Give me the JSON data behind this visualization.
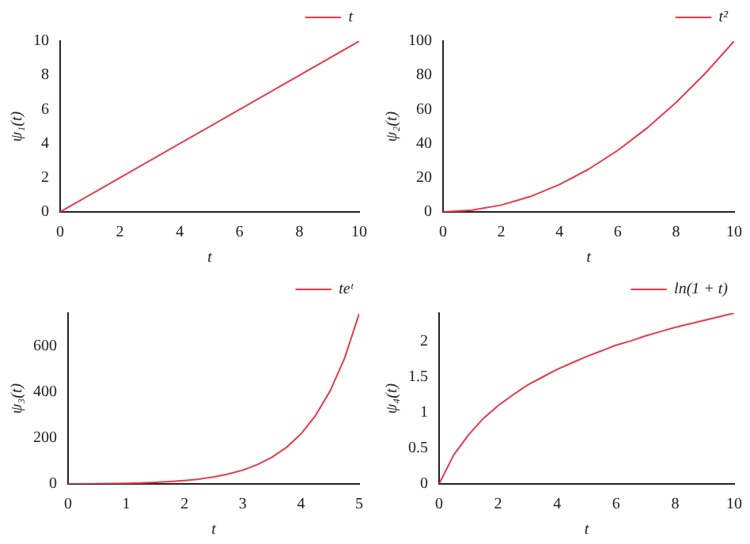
{
  "chart_data": [
    {
      "type": "line",
      "xlabel": "t",
      "ylabel": "ψ₁(t)",
      "x": [
        0,
        10
      ],
      "series": [
        {
          "name": "t",
          "color": "#e8394a",
          "values": [
            0,
            10
          ]
        }
      ],
      "xlim": [
        0,
        10
      ],
      "ylim": [
        0,
        10
      ],
      "xticks": [
        0,
        2,
        4,
        6,
        8,
        10
      ],
      "yticks": [
        0,
        2,
        4,
        6,
        8,
        10
      ],
      "grid": false,
      "legend": "top right",
      "marker": "none",
      "line_style": "solid"
    },
    {
      "type": "line",
      "xlabel": "t",
      "ylabel": "ψ₂(t)",
      "x": [
        0,
        1,
        2,
        3,
        4,
        5,
        6,
        7,
        8,
        9,
        10
      ],
      "series": [
        {
          "name": "t²",
          "color": "#e8394a",
          "values": [
            0,
            1,
            4,
            9,
            16,
            25,
            36,
            49,
            64,
            81,
            100
          ]
        }
      ],
      "xlim": [
        0,
        10
      ],
      "ylim": [
        0,
        100
      ],
      "xticks": [
        0,
        2,
        4,
        6,
        8,
        10
      ],
      "yticks": [
        0,
        20,
        40,
        60,
        80,
        100
      ],
      "grid": false,
      "legend": "top right",
      "marker": "none",
      "line_style": "solid"
    },
    {
      "type": "line",
      "xlabel": "t",
      "ylabel": "ψ₃(t)",
      "x": [
        0,
        0.25,
        0.5,
        0.75,
        1,
        1.25,
        1.5,
        1.75,
        2,
        2.25,
        2.5,
        2.75,
        3,
        3.25,
        3.5,
        3.75,
        4,
        4.25,
        4.5,
        4.75,
        5
      ],
      "series": [
        {
          "name": "teᵗ",
          "color": "#e8394a",
          "values": [
            0,
            0,
            1,
            2,
            3,
            4,
            7,
            10,
            15,
            21,
            30,
            43,
            60,
            84,
            116,
            159,
            218,
            298,
            405,
            549,
            742
          ]
        }
      ],
      "xlim": [
        0,
        5
      ],
      "ylim": [
        0,
        745
      ],
      "xticks": [
        0,
        1,
        2,
        3,
        4,
        5
      ],
      "yticks": [
        0,
        200,
        400,
        600
      ],
      "grid": false,
      "legend": "top right",
      "marker": "none",
      "line_style": "solid"
    },
    {
      "type": "line",
      "xlabel": "t",
      "ylabel": "ψ₄(t)",
      "x": [
        0,
        0.5,
        1,
        1.5,
        2,
        2.5,
        3,
        3.5,
        4,
        4.5,
        5,
        5.5,
        6,
        6.5,
        7,
        7.5,
        8,
        8.5,
        9,
        9.5,
        10
      ],
      "series": [
        {
          "name": "ln(1 + t)",
          "color": "#e8394a",
          "values": [
            0,
            0.41,
            0.69,
            0.92,
            1.1,
            1.25,
            1.39,
            1.5,
            1.61,
            1.7,
            1.79,
            1.87,
            1.95,
            2.01,
            2.08,
            2.14,
            2.2,
            2.25,
            2.3,
            2.35,
            2.4
          ]
        }
      ],
      "xlim": [
        0,
        10
      ],
      "ylim": [
        0,
        2.4
      ],
      "xticks": [
        0,
        2,
        4,
        6,
        8,
        10
      ],
      "yticks": [
        0,
        0.5,
        1,
        1.5,
        2
      ],
      "grid": false,
      "legend": "top right",
      "marker": "none",
      "line_style": "solid"
    }
  ]
}
